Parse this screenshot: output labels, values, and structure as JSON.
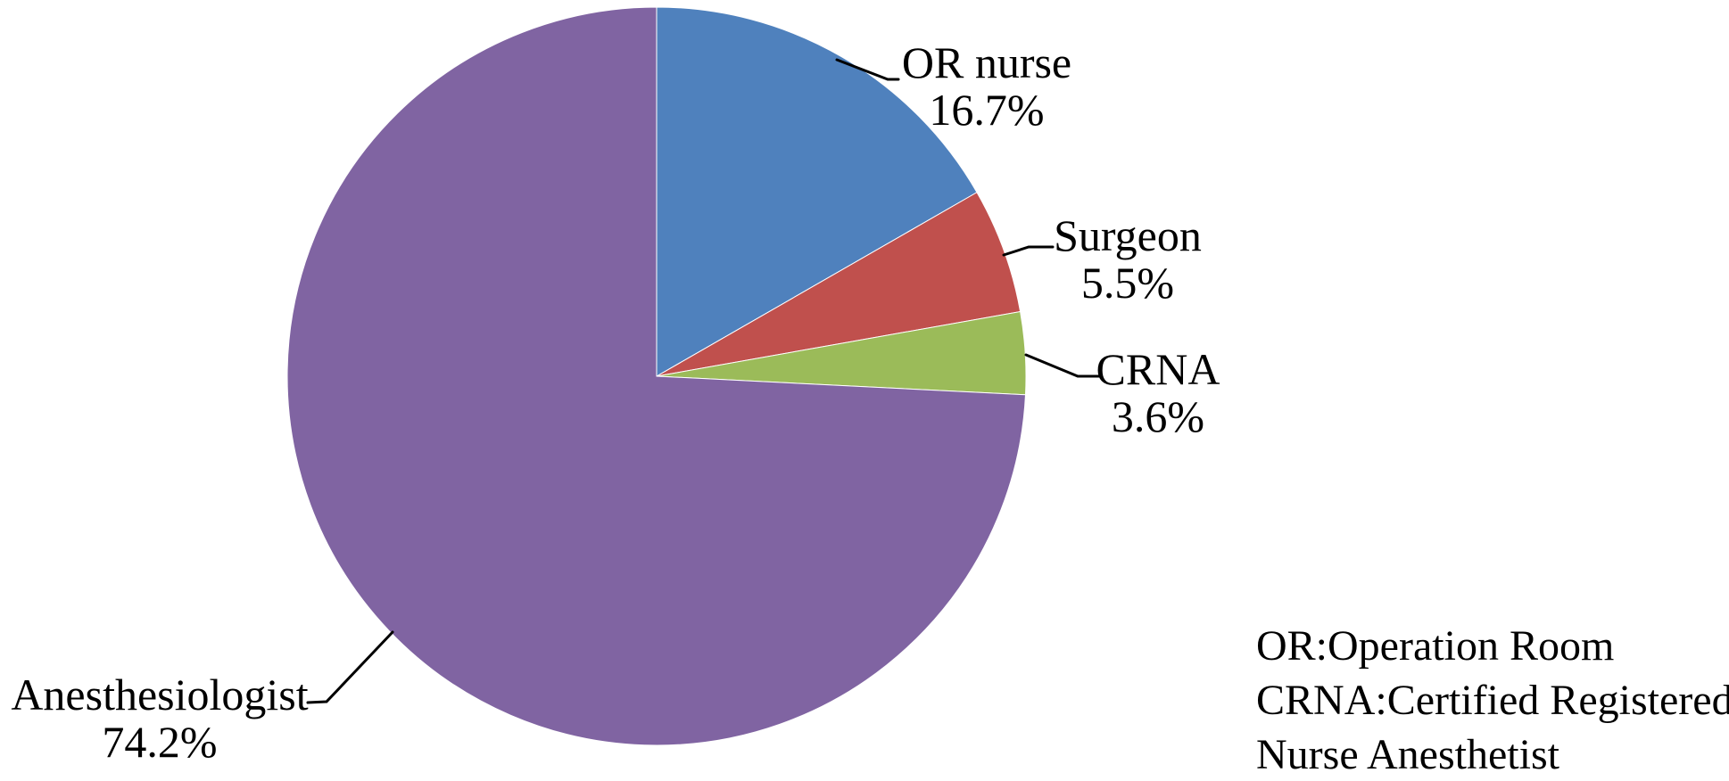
{
  "background_color": "#ffffff",
  "chart_data": {
    "type": "pie",
    "title": "",
    "unit": "%",
    "categories": [
      "OR nurse",
      "Surgeon",
      "CRNA",
      "Anesthesiologist"
    ],
    "values": [
      16.7,
      5.5,
      3.6,
      74.2
    ],
    "slices": [
      {
        "label": "OR nurse",
        "value": 16.7,
        "display": "16.7%",
        "color": "#4F81BD"
      },
      {
        "label": "Surgeon",
        "value": 5.5,
        "display": "5.5%",
        "color": "#C0504D"
      },
      {
        "label": "CRNA",
        "value": 3.6,
        "display": "3.6%",
        "color": "#9BBB59"
      },
      {
        "label": "Anesthesiologist",
        "value": 74.2,
        "display": "74.2%",
        "color": "#8064A2"
      }
    ],
    "start_angle_deg": 0,
    "direction": "clockwise",
    "legend": "none",
    "label_style": "outside-with-leader-lines",
    "leader_line_color": "#000000",
    "label_text_color": "#000000"
  },
  "note": {
    "lines": [
      "OR:Operation Room",
      "CRNA:Certified Registered",
      "Nurse Anesthetist"
    ]
  }
}
